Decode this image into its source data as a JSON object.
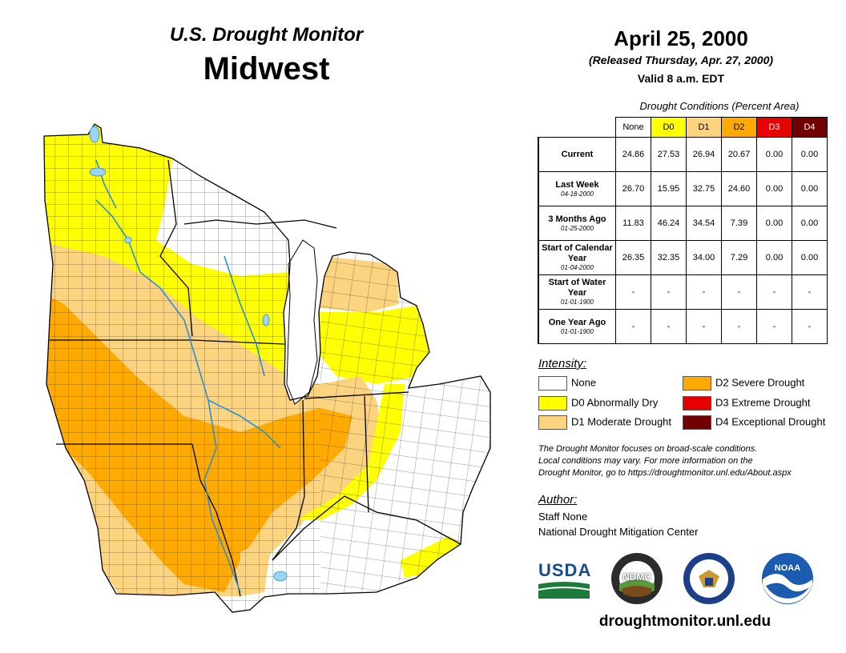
{
  "header": {
    "subtitle": "U.S. Drought Monitor",
    "region": "Midwest",
    "date": "April 25, 2000",
    "released": "(Released Thursday, Apr. 27, 2000)",
    "valid": "Valid 8 a.m. EDT"
  },
  "table": {
    "caption": "Drought Conditions (Percent Area)",
    "columns": [
      "None",
      "D0",
      "D1",
      "D2",
      "D3",
      "D4"
    ],
    "rows": [
      {
        "label": "Current",
        "date": "",
        "values": [
          "24.86",
          "27.53",
          "26.94",
          "20.67",
          "0.00",
          "0.00"
        ]
      },
      {
        "label": "Last Week",
        "date": "04-18-2000",
        "values": [
          "26.70",
          "15.95",
          "32.75",
          "24.60",
          "0.00",
          "0.00"
        ]
      },
      {
        "label": "3 Months Ago",
        "date": "01-25-2000",
        "values": [
          "11.83",
          "46.24",
          "34.54",
          "7.39",
          "0.00",
          "0.00"
        ]
      },
      {
        "label": "Start of Calendar Year",
        "date": "01-04-2000",
        "values": [
          "26.35",
          "32.35",
          "34.00",
          "7.29",
          "0.00",
          "0.00"
        ]
      },
      {
        "label": "Start of Water Year",
        "date": "01-01-1900",
        "values": [
          "-",
          "-",
          "-",
          "-",
          "-",
          "-"
        ]
      },
      {
        "label": "One Year Ago",
        "date": "01-01-1900",
        "values": [
          "-",
          "-",
          "-",
          "-",
          "-",
          "-"
        ]
      }
    ]
  },
  "legend": {
    "title": "Intensity:",
    "items": [
      {
        "label": "None",
        "color": "#ffffff"
      },
      {
        "label": "D0 Abnormally Dry",
        "color": "#ffff00"
      },
      {
        "label": "D1 Moderate Drought",
        "color": "#fcd37f"
      },
      {
        "label": "D2 Severe Drought",
        "color": "#ffaa00"
      },
      {
        "label": "D3 Extreme Drought",
        "color": "#e60000"
      },
      {
        "label": "D4 Exceptional Drought",
        "color": "#730000"
      }
    ]
  },
  "note": {
    "line1": "The Drought Monitor focuses on broad-scale conditions.",
    "line2": "Local conditions may vary. For more information on the",
    "line3": "Drought Monitor, go to https://droughtmonitor.unl.edu/About.aspx"
  },
  "author": {
    "title": "Author:",
    "name": "Staff None",
    "org": "National Drought Mitigation Center"
  },
  "logos": {
    "usda": "USDA",
    "ndmc": "NDMC",
    "noaa": "NOAA"
  },
  "footer": {
    "url": "droughtmonitor.unl.edu"
  }
}
